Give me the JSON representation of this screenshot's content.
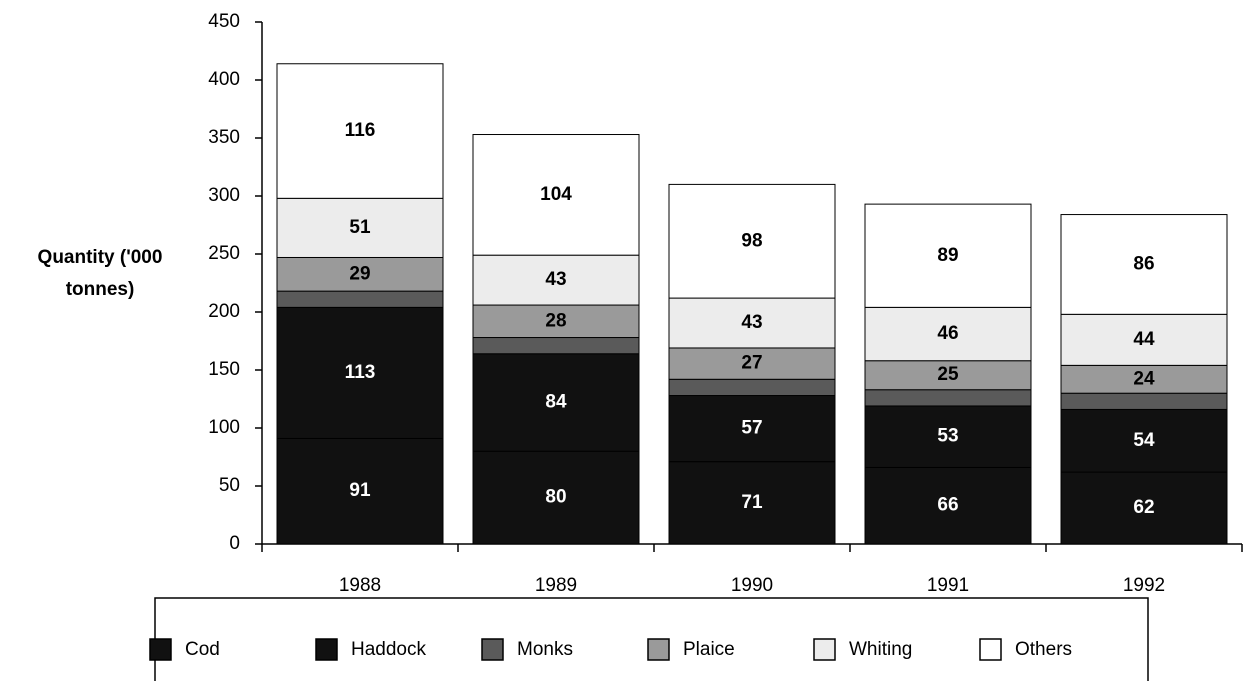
{
  "chart_data": {
    "type": "stacked_bar",
    "y_label": "Quantity ('000 tonnes)",
    "categories": [
      "1988",
      "1989",
      "1990",
      "1991",
      "1992"
    ],
    "series": [
      {
        "name": "Cod",
        "color": "#111111",
        "label_color": "#ffffff",
        "data_labels": true,
        "values": [
          91,
          80,
          71,
          66,
          62
        ]
      },
      {
        "name": "Haddock",
        "color": "#111111",
        "label_color": "#ffffff",
        "data_labels": true,
        "values": [
          113,
          84,
          57,
          53,
          54
        ]
      },
      {
        "name": "Monks",
        "color": "#5a5a5a",
        "label_color": "#000000",
        "data_labels": false,
        "values": [
          14,
          14,
          14,
          14,
          14
        ]
      },
      {
        "name": "Plaice",
        "color": "#9a9a9a",
        "label_color": "#000000",
        "data_labels": true,
        "values": [
          29,
          28,
          27,
          25,
          24
        ]
      },
      {
        "name": "Whiting",
        "color": "#ececec",
        "label_color": "#000000",
        "data_labels": true,
        "values": [
          51,
          43,
          43,
          46,
          44
        ]
      },
      {
        "name": "Others",
        "color": "#ffffff",
        "label_color": "#000000",
        "data_labels": true,
        "values": [
          116,
          104,
          98,
          89,
          86
        ]
      }
    ],
    "ylim": [
      0,
      450
    ],
    "yticks": [
      0,
      50,
      100,
      150,
      200,
      250,
      300,
      350,
      400,
      450
    ],
    "legend": "bottom"
  }
}
